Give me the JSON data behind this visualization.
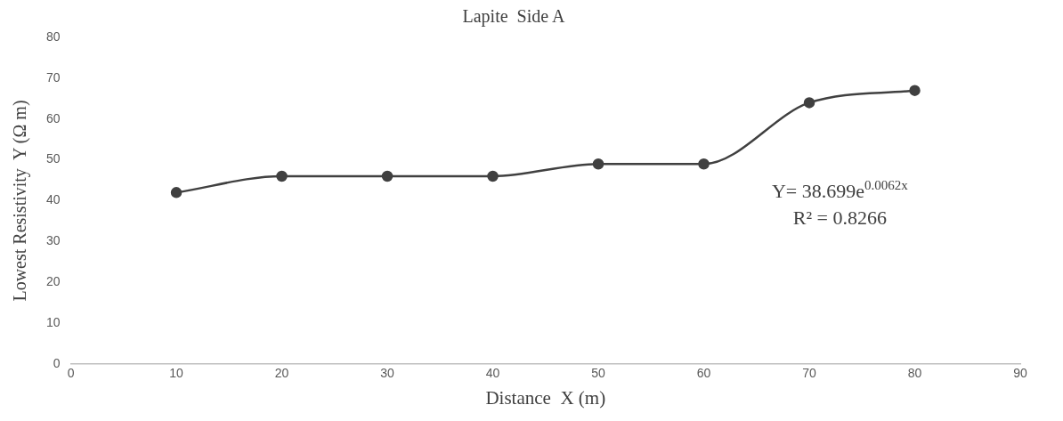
{
  "chart_data": {
    "type": "line",
    "title": "Lapite  Side A",
    "xlabel": "Distance  X (m)",
    "ylabel": "Lowest Resistivity  Y (Ω m)",
    "x": [
      10,
      20,
      30,
      40,
      50,
      60,
      70,
      80
    ],
    "series": [
      {
        "color": "#404040",
        "values": [
          42,
          46,
          46,
          46,
          49,
          49,
          64,
          67
        ]
      }
    ],
    "xlim": [
      0,
      90
    ],
    "xticks": [
      0,
      10,
      20,
      30,
      40,
      50,
      60,
      70,
      80,
      90
    ],
    "ylim": [
      0,
      80
    ],
    "yticks": [
      0,
      10,
      20,
      30,
      40,
      50,
      60,
      70,
      80
    ],
    "grid": false,
    "legend": false,
    "marker": "circle",
    "line_style": "solid",
    "annotations": [
      "Y= 38.699e$^{0.0062x}$",
      "R² = 0.8266"
    ]
  }
}
